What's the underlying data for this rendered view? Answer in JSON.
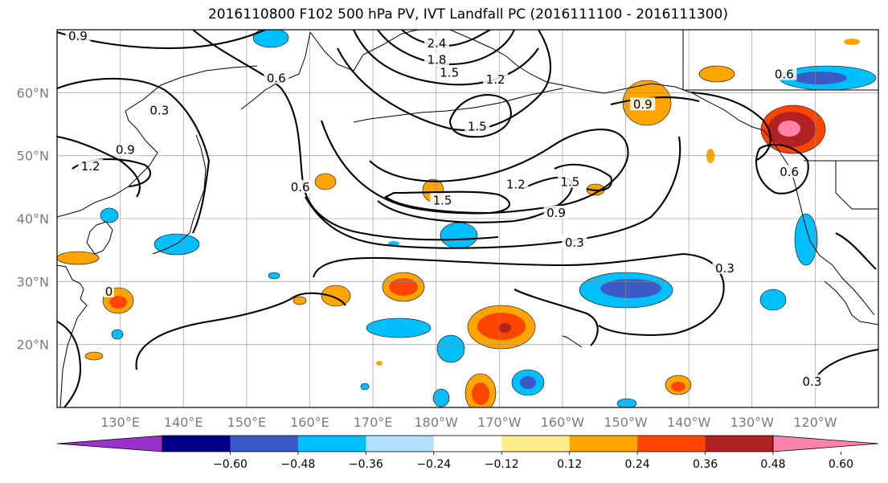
{
  "title": "2016110800 F102 500 hPa PV, IVT Landfall PC (2016111100 - 2016111300)",
  "map": {
    "lon_min": 120,
    "lon_max": 250,
    "lat_min": 10,
    "lat_max": 70,
    "lat_ticks": [
      {
        "value": 20,
        "label": "20°N"
      },
      {
        "value": 30,
        "label": "30°N"
      },
      {
        "value": 40,
        "label": "40°N"
      },
      {
        "value": 50,
        "label": "50°N"
      },
      {
        "value": 60,
        "label": "60°N"
      }
    ],
    "lon_ticks": [
      {
        "value": 130,
        "label": "130°E"
      },
      {
        "value": 140,
        "label": "140°E"
      },
      {
        "value": 150,
        "label": "150°E"
      },
      {
        "value": 160,
        "label": "160°E"
      },
      {
        "value": 170,
        "label": "170°E"
      },
      {
        "value": 180,
        "label": "180°W"
      },
      {
        "value": 190,
        "label": "170°W"
      },
      {
        "value": 200,
        "label": "160°W"
      },
      {
        "value": 210,
        "label": "150°W"
      },
      {
        "value": 220,
        "label": "140°W"
      },
      {
        "value": 230,
        "label": "130°W"
      },
      {
        "value": 240,
        "label": "120°W"
      }
    ],
    "grid": true
  },
  "colorbar": {
    "labels": [
      "−0.60",
      "−0.48",
      "−0.36",
      "−0.24",
      "−0.12",
      "0.12",
      "0.24",
      "0.36",
      "0.48",
      "0.60"
    ],
    "colors": [
      "#9932cc",
      "#00008b",
      "#3a5bc7",
      "#00bfff",
      "#b0e2ff",
      "#ffffff",
      "#ffec8b",
      "#ffa500",
      "#ff4500",
      "#b22222",
      "#ff82ab"
    ]
  },
  "contour_labels": [
    {
      "text": "0.9",
      "lon": 123.3,
      "lat": 69.0
    },
    {
      "text": "2.4",
      "lon": 180.1,
      "lat": 67.8
    },
    {
      "text": "1.8",
      "lon": 180.1,
      "lat": 65.2
    },
    {
      "text": "1.5",
      "lon": 182.1,
      "lat": 63.2
    },
    {
      "text": "1.2",
      "lon": 189.4,
      "lat": 62.1
    },
    {
      "text": "0.6",
      "lon": 154.7,
      "lat": 62.3
    },
    {
      "text": "0.3",
      "lon": 136.2,
      "lat": 57.2
    },
    {
      "text": "1.5",
      "lon": 186.5,
      "lat": 54.6
    },
    {
      "text": "0.9",
      "lon": 130.8,
      "lat": 50.9
    },
    {
      "text": "1.2",
      "lon": 125.3,
      "lat": 48.3
    },
    {
      "text": "0.6",
      "lon": 158.5,
      "lat": 45.0
    },
    {
      "text": "1.5",
      "lon": 181.0,
      "lat": 42.9
    },
    {
      "text": "1.2",
      "lon": 192.6,
      "lat": 45.4
    },
    {
      "text": "1.5",
      "lon": 201.2,
      "lat": 45.8
    },
    {
      "text": "0.9",
      "lon": 199.0,
      "lat": 40.9
    },
    {
      "text": "0.3",
      "lon": 201.9,
      "lat": 36.2
    },
    {
      "text": "0.9",
      "lon": 212.7,
      "lat": 58.1
    },
    {
      "text": "0.6",
      "lon": 235.1,
      "lat": 62.9
    },
    {
      "text": "0.6",
      "lon": 235.9,
      "lat": 47.4
    },
    {
      "text": "0.3",
      "lon": 225.7,
      "lat": 32.1
    },
    {
      "text": "0.3",
      "lon": 239.5,
      "lat": 14.1
    },
    {
      "text": "0",
      "lon": 128.2,
      "lat": 28.4
    }
  ]
}
